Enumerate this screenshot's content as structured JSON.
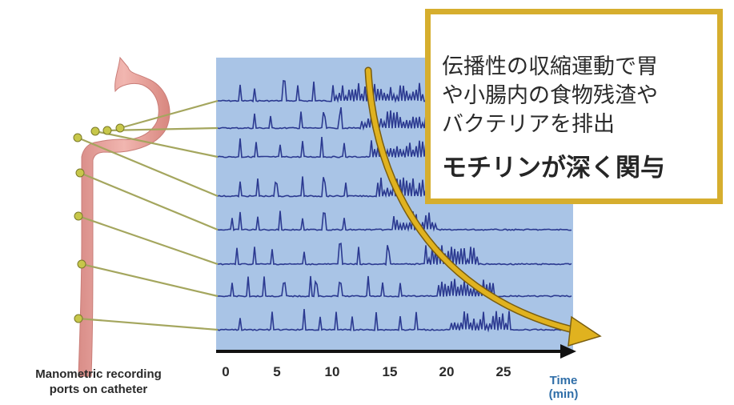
{
  "callout": {
    "description": "伝播性の収縮運動で胃\nや小腸内の食物残渣や\nバクテリアを排出",
    "emphasis": "モチリンが深く関与"
  },
  "catheter_label": "Manometric recording\nports on catheter",
  "time_axis": {
    "ticks": [
      "0",
      "5",
      "10",
      "15",
      "20",
      "25"
    ],
    "unit_label": "Time",
    "unit_sub": "(min)"
  },
  "colors": {
    "panel": "#a9c4e6",
    "trace": "#2b3990",
    "callout_border": "#d6ae2e",
    "arrow": "#e0b21f",
    "connector": "#a4a65e",
    "port": "#c7c74a",
    "stomach": "#e8a29d"
  },
  "icons": [
    "stomach-esophagus-illustration",
    "propagation-arrow"
  ]
}
